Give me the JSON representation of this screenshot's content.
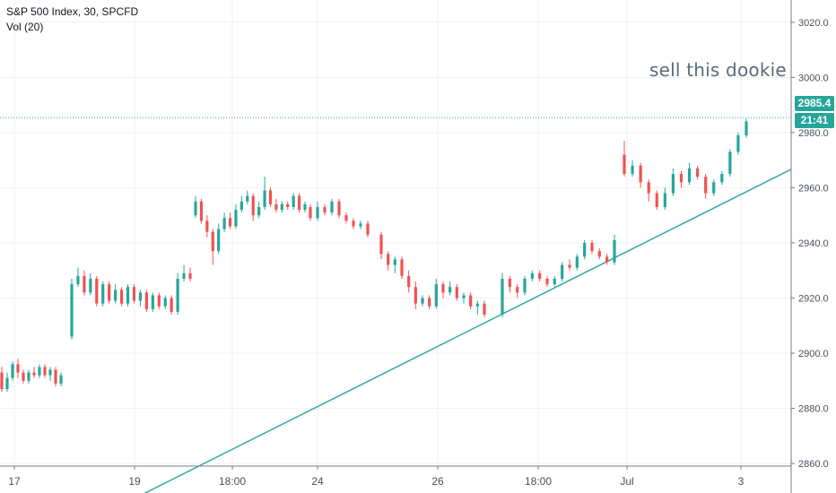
{
  "header": {
    "symbol_line": "S&P 500 Index, 30, SPCFD",
    "volume_line": "Vol (20)"
  },
  "annotation": {
    "text": "sell this dookie"
  },
  "price_badge": {
    "value": "2985.4",
    "countdown": "21:41"
  },
  "colors": {
    "up": "#26a69a",
    "down": "#ef5350",
    "trendline": "#26a69a",
    "grid": "#eef1f5",
    "axis_text": "#4a4f5a"
  },
  "chart_data": {
    "type": "candlestick",
    "y_axis": {
      "ticks": [
        3020,
        3000,
        2980,
        2960,
        2940,
        2920,
        2900,
        2880,
        2860
      ],
      "tick_labels": [
        "3020.0",
        "3000.0",
        "2980.0",
        "2960.0",
        "2940.0",
        "2920.0",
        "2900.0",
        "2880.0",
        "2860.0"
      ],
      "ylim": [
        2855,
        3025
      ]
    },
    "x_axis": {
      "tick_labels": [
        "17",
        "19",
        "18:00",
        "24",
        "26",
        "18:00",
        "Jul",
        "3"
      ]
    },
    "last_price": 2985.4,
    "trendline": {
      "from": {
        "bar": 51,
        "price": 2850
      },
      "to": {
        "bar": 290,
        "price": 2967
      }
    },
    "candles": [
      [
        2893,
        2887,
        2895,
        2886
      ],
      [
        2887,
        2891,
        2893,
        2886
      ],
      [
        2891,
        2896,
        2897,
        2890
      ],
      [
        2896,
        2893,
        2898,
        2891
      ],
      [
        2893,
        2890,
        2894,
        2889
      ],
      [
        2890,
        2893,
        2894,
        2889
      ],
      [
        2893,
        2892,
        2895,
        2891
      ],
      [
        2892,
        2895,
        2896,
        2891
      ],
      [
        2895,
        2892,
        2896,
        2891
      ],
      [
        2892,
        2894,
        2895,
        2890
      ],
      [
        2894,
        2889,
        2895,
        2888
      ],
      [
        2889,
        2892,
        2893,
        2888
      ],
      [
        2906,
        2925,
        2927,
        2905
      ],
      [
        2925,
        2928,
        2931,
        2924
      ],
      [
        2928,
        2922,
        2930,
        2921
      ],
      [
        2922,
        2927,
        2929,
        2921
      ],
      [
        2927,
        2918,
        2928,
        2917
      ],
      [
        2918,
        2925,
        2926,
        2917
      ],
      [
        2925,
        2919,
        2926,
        2918
      ],
      [
        2919,
        2923,
        2925,
        2918
      ],
      [
        2923,
        2918,
        2924,
        2917
      ],
      [
        2918,
        2924,
        2925,
        2917
      ],
      [
        2924,
        2919,
        2925,
        2918
      ],
      [
        2919,
        2922,
        2923,
        2917
      ],
      [
        2922,
        2916,
        2923,
        2915
      ],
      [
        2916,
        2921,
        2922,
        2915
      ],
      [
        2921,
        2917,
        2922,
        2916
      ],
      [
        2917,
        2920,
        2921,
        2916
      ],
      [
        2920,
        2915,
        2921,
        2914
      ],
      [
        2915,
        2927,
        2929,
        2914
      ],
      [
        2927,
        2929,
        2932,
        2926
      ],
      [
        2929,
        2927,
        2931,
        2926
      ],
      [
        2950,
        2955,
        2957,
        2949
      ],
      [
        2955,
        2948,
        2956,
        2947
      ],
      [
        2948,
        2944,
        2950,
        2942
      ],
      [
        2944,
        2937,
        2945,
        2932
      ],
      [
        2937,
        2945,
        2947,
        2936
      ],
      [
        2945,
        2949,
        2951,
        2944
      ],
      [
        2949,
        2946,
        2951,
        2945
      ],
      [
        2946,
        2952,
        2954,
        2945
      ],
      [
        2952,
        2955,
        2957,
        2951
      ],
      [
        2955,
        2957,
        2959,
        2954
      ],
      [
        2957,
        2950,
        2958,
        2948
      ],
      [
        2950,
        2953,
        2955,
        2949
      ],
      [
        2953,
        2959,
        2964,
        2952
      ],
      [
        2959,
        2954,
        2960,
        2953
      ],
      [
        2954,
        2952,
        2956,
        2951
      ],
      [
        2952,
        2954,
        2955,
        2951
      ],
      [
        2954,
        2953,
        2955,
        2952
      ],
      [
        2953,
        2957,
        2958,
        2952
      ],
      [
        2957,
        2952,
        2958,
        2951
      ],
      [
        2952,
        2954,
        2955,
        2951
      ],
      [
        2953,
        2949,
        2954,
        2948
      ],
      [
        2949,
        2953,
        2955,
        2948
      ],
      [
        2953,
        2951,
        2954,
        2950
      ],
      [
        2951,
        2955,
        2956,
        2950
      ],
      [
        2955,
        2950,
        2956,
        2949
      ],
      [
        2950,
        2948,
        2951,
        2947
      ],
      [
        2948,
        2946,
        2949,
        2945
      ],
      [
        2946,
        2947,
        2948,
        2945
      ],
      [
        2947,
        2943,
        2948,
        2942
      ],
      [
        2943,
        2936,
        2944,
        2934
      ],
      [
        2936,
        2932,
        2937,
        2930
      ],
      [
        2932,
        2934,
        2935,
        2929
      ],
      [
        2934,
        2928,
        2935,
        2927
      ],
      [
        2928,
        2924,
        2930,
        2922
      ],
      [
        2924,
        2918,
        2926,
        2916
      ],
      [
        2918,
        2920,
        2921,
        2917
      ],
      [
        2920,
        2917,
        2921,
        2916
      ],
      [
        2917,
        2925,
        2927,
        2916
      ],
      [
        2925,
        2922,
        2926,
        2920
      ],
      [
        2922,
        2924,
        2926,
        2921
      ],
      [
        2924,
        2920,
        2925,
        2919
      ],
      [
        2920,
        2921,
        2922,
        2918
      ],
      [
        2921,
        2917,
        2922,
        2916
      ],
      [
        2917,
        2918,
        2919,
        2914
      ],
      [
        2918,
        2914,
        2919,
        2913
      ],
      [
        2914,
        2927,
        2929,
        2913
      ],
      [
        2927,
        2924,
        2928,
        2922
      ],
      [
        2924,
        2922,
        2925,
        2920
      ],
      [
        2922,
        2927,
        2928,
        2921
      ],
      [
        2927,
        2929,
        2930,
        2926
      ],
      [
        2929,
        2927,
        2930,
        2926
      ],
      [
        2927,
        2925,
        2928,
        2924
      ],
      [
        2925,
        2927,
        2928,
        2924
      ],
      [
        2927,
        2932,
        2933,
        2926
      ],
      [
        2932,
        2931,
        2934,
        2930
      ],
      [
        2931,
        2935,
        2936,
        2930
      ],
      [
        2935,
        2940,
        2941,
        2934
      ],
      [
        2940,
        2937,
        2941,
        2936
      ],
      [
        2937,
        2935,
        2938,
        2934
      ],
      [
        2935,
        2933,
        2936,
        2932
      ],
      [
        2933,
        2941,
        2943,
        2932
      ],
      [
        2972,
        2965,
        2977,
        2964
      ],
      [
        2965,
        2968,
        2970,
        2964
      ],
      [
        2968,
        2962,
        2969,
        2960
      ],
      [
        2962,
        2958,
        2963,
        2955
      ],
      [
        2958,
        2953,
        2959,
        2952
      ],
      [
        2953,
        2958,
        2960,
        2952
      ],
      [
        2958,
        2965,
        2967,
        2957
      ],
      [
        2965,
        2962,
        2966,
        2960
      ],
      [
        2962,
        2967,
        2969,
        2961
      ],
      [
        2967,
        2964,
        2968,
        2963
      ],
      [
        2964,
        2958,
        2965,
        2956
      ],
      [
        2958,
        2962,
        2963,
        2957
      ],
      [
        2962,
        2965,
        2966,
        2961
      ],
      [
        2965,
        2973,
        2974,
        2964
      ],
      [
        2973,
        2979,
        2980,
        2972
      ],
      [
        2979,
        2984,
        2985,
        2978
      ]
    ]
  }
}
